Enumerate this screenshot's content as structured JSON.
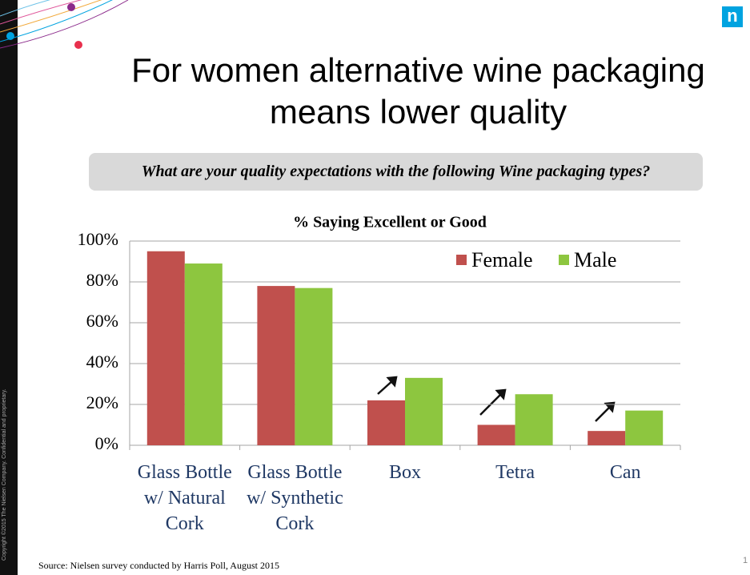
{
  "header": {
    "title": "For women alternative wine packaging means lower quality",
    "logo": "n"
  },
  "question": "What are your quality expectations  with the following Wine packaging types?",
  "chart_data": {
    "type": "bar",
    "title": "% Saying Excellent or Good",
    "categories": [
      "Glass Bottle w/ Natural Cork",
      "Glass Bottle w/ Synthetic Cork",
      "Box",
      "Tetra",
      "Can"
    ],
    "series": [
      {
        "name": "Female",
        "color": "#c0504d",
        "values": [
          95,
          78,
          22,
          10,
          7
        ]
      },
      {
        "name": "Male",
        "color": "#8dc63f",
        "values": [
          89,
          77,
          33,
          25,
          17
        ]
      }
    ],
    "ylim": [
      0,
      100
    ],
    "yticks": [
      {
        "value": 0,
        "label": "0%"
      },
      {
        "value": 20,
        "label": "20%"
      },
      {
        "value": 40,
        "label": "40%"
      },
      {
        "value": 60,
        "label": "60%"
      },
      {
        "value": 80,
        "label": "80%"
      },
      {
        "value": 100,
        "label": "100%"
      }
    ],
    "grid": true,
    "legend": "top-right"
  },
  "source": "Source: Nielsen survey conducted by Harris Poll, August 2015",
  "copyright": "Copyright ©2015 The Nielsen Company. Confidential and proprietary.",
  "page_number": "1"
}
